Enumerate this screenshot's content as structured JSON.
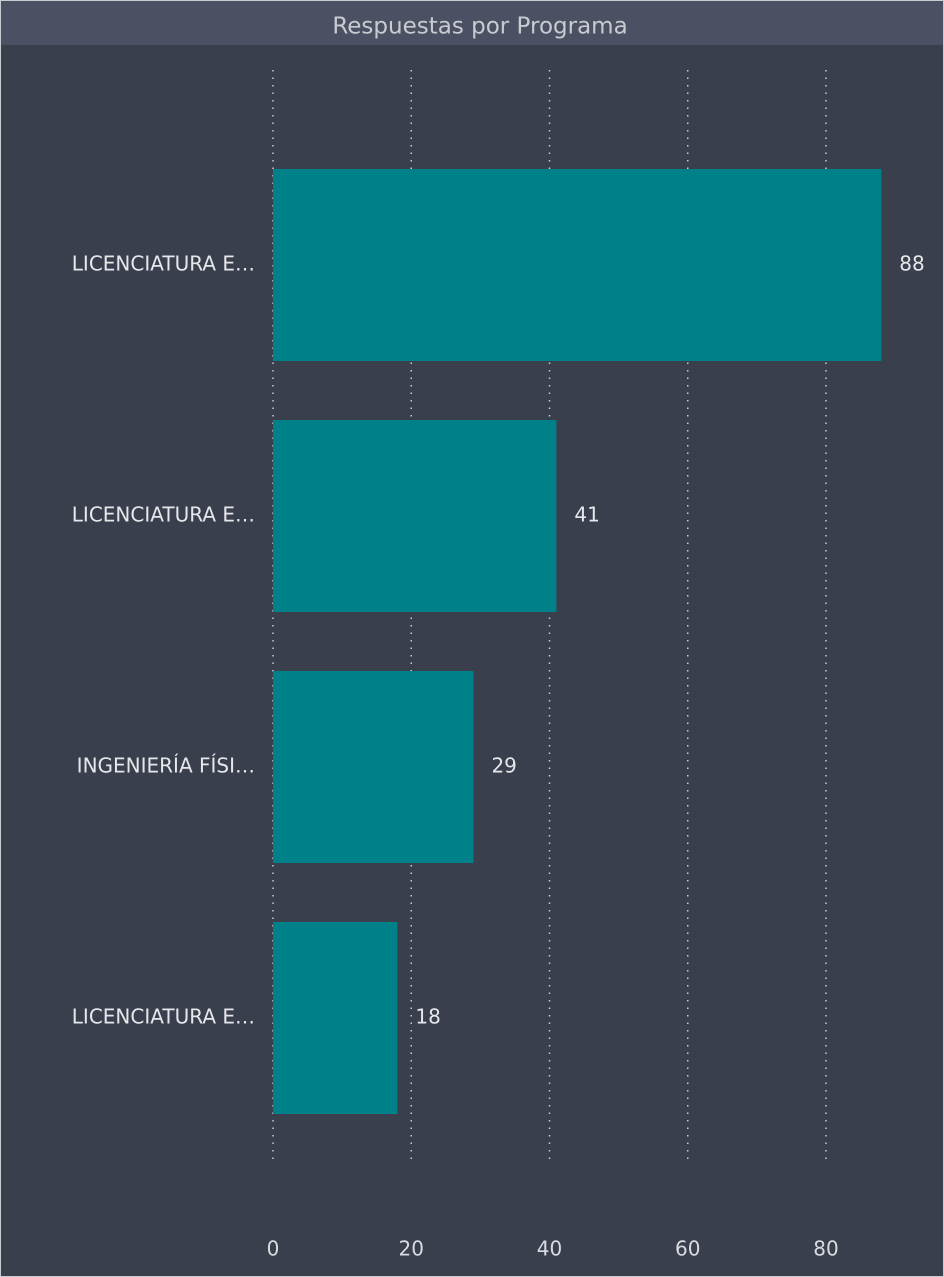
{
  "chart_data": {
    "type": "bar",
    "orientation": "horizontal",
    "title": "Respuestas por Programa",
    "categories": [
      "LICENCIATURA E…",
      "LICENCIATURA E…",
      "INGENIERÍA FÍSI…",
      "LICENCIATURA E…"
    ],
    "values": [
      88,
      41,
      29,
      18
    ],
    "color": "#00818a",
    "xlim": [
      0,
      92
    ],
    "xticks": [
      0,
      20,
      40,
      60,
      80
    ],
    "grid": true
  }
}
